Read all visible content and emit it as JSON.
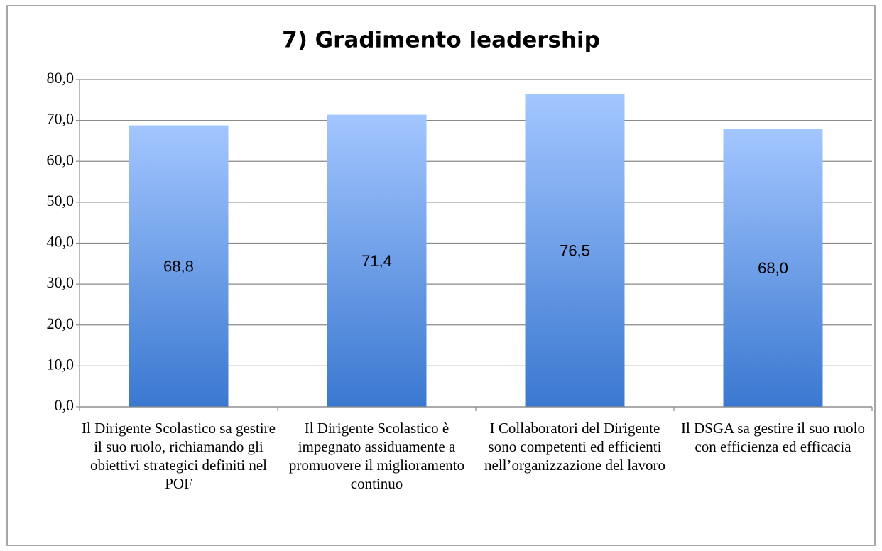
{
  "chart_data": {
    "type": "bar",
    "title": "7) Gradimento leadership",
    "categories": [
      "Il Dirigente Scolastico sa gestire il suo ruolo, richiamando gli obiettivi strategici definiti nel POF",
      "Il Dirigente Scolastico è impegnato assiduamente a promuovere il miglioramento continuo",
      "I Collaboratori del Dirigente sono competenti ed efficienti nell’organizzazione del lavoro",
      "Il DSGA sa gestire il suo ruolo con efficienza ed efficacia"
    ],
    "values": [
      68.8,
      71.4,
      76.5,
      68.0
    ],
    "value_labels": [
      "68,8",
      "71,4",
      "76,5",
      "68,0"
    ],
    "color": "#3a78d0",
    "ylim": [
      0,
      80
    ],
    "yticks": [
      {
        "value": 0,
        "label": "0,0"
      },
      {
        "value": 10,
        "label": "10,0"
      },
      {
        "value": 20,
        "label": "20,0"
      },
      {
        "value": 30,
        "label": "30,0"
      },
      {
        "value": 40,
        "label": "40,0"
      },
      {
        "value": 50,
        "label": "50,0"
      },
      {
        "value": 60,
        "label": "60,0"
      },
      {
        "value": 70,
        "label": "70,0"
      },
      {
        "value": 80,
        "label": "80,0"
      }
    ],
    "grid": true
  }
}
